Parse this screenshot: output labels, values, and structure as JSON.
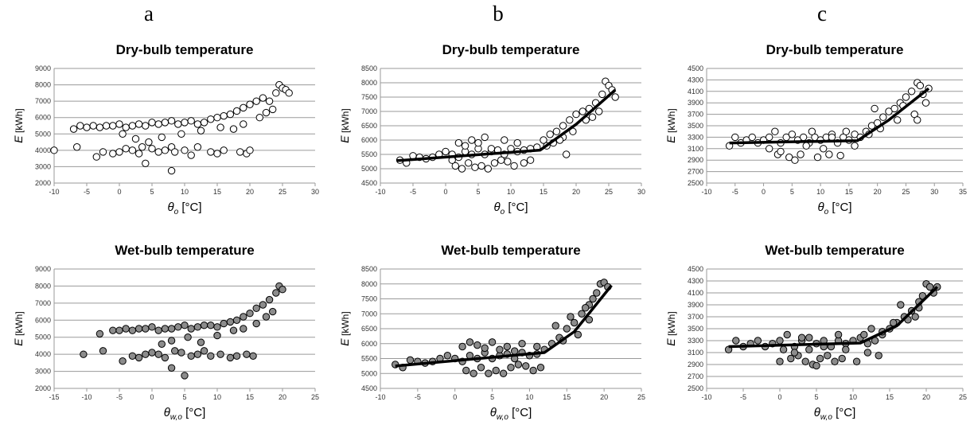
{
  "columns": [
    "a",
    "b",
    "c"
  ],
  "chart_data": [
    {
      "id": "a-dry",
      "type": "scatter",
      "title": "Dry-bulb temperature",
      "xlabel_sym": "θ",
      "xlabel_sub": "o",
      "xlabel_unit": " [°C]",
      "ylabel_sym": "E",
      "ylabel_unit": " [kWh]",
      "xlim": [
        -10,
        30
      ],
      "xticks": [
        -10,
        -5,
        0,
        5,
        10,
        15,
        20,
        25,
        30
      ],
      "ylim": [
        2000,
        9000
      ],
      "yticks": [
        2000,
        3000,
        4000,
        5000,
        6000,
        7000,
        8000,
        9000
      ],
      "marker": "open",
      "fit": false,
      "series": [
        {
          "x": [
            -10,
            -7,
            -6.5,
            -6,
            -5,
            -4,
            -3,
            -2,
            -1,
            0,
            1,
            2,
            3,
            4,
            5,
            6,
            7,
            8,
            9,
            10,
            11,
            12,
            13,
            14,
            15,
            16,
            17,
            18,
            19,
            20,
            21,
            22,
            23,
            24,
            24.5,
            25,
            25.5,
            26,
            -3.5,
            -2.5,
            -1,
            0,
            1,
            2,
            3,
            3.5,
            5,
            6,
            7,
            8,
            8.5,
            10,
            11,
            12,
            14,
            15,
            16,
            18.5,
            19.5,
            20,
            0.5,
            2.5,
            4.5,
            6.5,
            9.5,
            12.5,
            15.5,
            17.5,
            19,
            21.5,
            22.5,
            23.5,
            4,
            8
          ],
          "y": [
            4000,
            5300,
            4200,
            5500,
            5400,
            5500,
            5400,
            5500,
            5500,
            5600,
            5400,
            5500,
            5600,
            5500,
            5700,
            5600,
            5700,
            5800,
            5600,
            5700,
            5800,
            5600,
            5700,
            5900,
            6000,
            6100,
            6200,
            6400,
            6600,
            6800,
            7000,
            7200,
            7000,
            7500,
            8000,
            7800,
            7700,
            7500,
            3600,
            3900,
            3800,
            3900,
            4100,
            4000,
            3800,
            4200,
            4100,
            3900,
            4000,
            4200,
            3900,
            4000,
            3700,
            4200,
            3900,
            3800,
            4000,
            3900,
            3800,
            4000,
            5000,
            4700,
            4500,
            4800,
            5000,
            5200,
            5400,
            5300,
            5600,
            6000,
            6300,
            6500,
            3200,
            2750
          ]
        }
      ]
    },
    {
      "id": "b-dry",
      "type": "scatter",
      "title": "Dry-bulb temperature",
      "xlabel_sym": "θ",
      "xlabel_sub": "o",
      "xlabel_unit": " [°C]",
      "ylabel_sym": "E",
      "ylabel_unit": " [kWh]",
      "xlim": [
        -10,
        30
      ],
      "xticks": [
        -10,
        -5,
        0,
        5,
        10,
        15,
        20,
        25,
        30
      ],
      "ylim": [
        4500,
        8500
      ],
      "yticks": [
        4500,
        5000,
        5500,
        6000,
        6500,
        7000,
        7500,
        8000,
        8500
      ],
      "marker": "open",
      "fit": true,
      "fit_line": {
        "x": [
          -7.5,
          14.5,
          20,
          26
        ],
        "y": [
          5280,
          5650,
          6550,
          7750
        ]
      },
      "series": [
        {
          "x": [
            -7,
            -6,
            -5,
            -4,
            -3,
            -2,
            -1,
            0,
            1,
            2,
            3,
            4,
            5,
            6,
            7,
            8,
            9,
            10,
            11,
            12,
            13,
            14,
            15,
            16,
            17,
            18,
            19,
            20,
            21,
            22,
            23,
            24,
            24.5,
            25,
            25.5,
            26,
            1.5,
            2.5,
            3.5,
            4.5,
            5.5,
            6.5,
            7.5,
            8.5,
            9.5,
            10.5,
            12,
            13,
            16.5,
            18,
            19.5,
            21.5,
            23.5,
            2,
            4,
            6,
            9,
            11,
            1,
            3,
            5,
            7,
            15.5,
            17.5,
            18.5,
            22.5
          ],
          "y": [
            5300,
            5200,
            5450,
            5400,
            5350,
            5400,
            5500,
            5600,
            5500,
            5400,
            5600,
            5500,
            5700,
            5500,
            5600,
            5650,
            5500,
            5700,
            5600,
            5650,
            5700,
            5750,
            6000,
            6200,
            6300,
            6500,
            6700,
            6900,
            7000,
            7100,
            7300,
            7600,
            8050,
            7900,
            7750,
            7500,
            5100,
            5000,
            5200,
            5050,
            5100,
            5000,
            5200,
            5300,
            5250,
            5100,
            5200,
            5300,
            5900,
            6100,
            6300,
            6700,
            7000,
            5900,
            6000,
            6100,
            6000,
            5900,
            5300,
            5800,
            5900,
            5700,
            5800,
            6000,
            5500,
            6800
          ]
        }
      ]
    },
    {
      "id": "c-dry",
      "type": "scatter",
      "title": "Dry-bulb temperature",
      "xlabel_sym": "θ",
      "xlabel_sub": "o",
      "xlabel_unit": " [°C]",
      "ylabel_sym": "E",
      "ylabel_unit": " [kWh]",
      "xlim": [
        -10,
        35
      ],
      "xticks": [
        -10,
        -5,
        0,
        5,
        10,
        15,
        20,
        25,
        30,
        35
      ],
      "ylim": [
        2500,
        4500
      ],
      "yticks": [
        2500,
        2700,
        2900,
        3100,
        3300,
        3500,
        3700,
        3900,
        4100,
        4300,
        4500
      ],
      "marker": "open",
      "fit": true,
      "fit_line": {
        "x": [
          -6,
          16.5,
          22,
          29
        ],
        "y": [
          3200,
          3240,
          3600,
          4150
        ]
      },
      "series": [
        {
          "x": [
            -6,
            -5,
            -4,
            -3,
            -2,
            -1,
            0,
            1,
            2,
            3,
            4,
            5,
            6,
            7,
            8,
            9,
            10,
            11,
            12,
            13,
            14,
            15,
            16,
            17,
            18,
            19,
            20,
            21,
            22,
            23,
            24,
            25,
            26,
            27,
            27.5,
            28,
            28.5,
            29,
            2.5,
            4.5,
            5.5,
            6.5,
            9.5,
            11.5,
            13.5,
            1,
            3,
            7.5,
            10.5,
            14.5,
            18.5,
            20.5,
            23.5,
            26.5,
            27,
            8.5,
            12,
            16,
            19.5,
            24.5
          ],
          "y": [
            3150,
            3300,
            3200,
            3250,
            3300,
            3200,
            3250,
            3300,
            3400,
            3200,
            3300,
            3350,
            3250,
            3300,
            3200,
            3300,
            3250,
            3300,
            3350,
            3200,
            3300,
            3250,
            3350,
            3300,
            3400,
            3500,
            3550,
            3650,
            3750,
            3800,
            3900,
            4000,
            4100,
            4250,
            4200,
            4050,
            3900,
            4150,
            3000,
            2950,
            2900,
            3000,
            2950,
            3000,
            2980,
            3100,
            3050,
            3150,
            3100,
            3400,
            3350,
            3450,
            3600,
            3700,
            3600,
            3400,
            3300,
            3150,
            3800,
            3850
          ]
        }
      ]
    },
    {
      "id": "a-wet",
      "type": "scatter",
      "title": "Wet-bulb temperature",
      "xlabel_sym": "θ",
      "xlabel_sub": "w,o",
      "xlabel_unit": " [°C]",
      "ylabel_sym": "E",
      "ylabel_unit": " [kWh]",
      "xlim": [
        -15,
        25
      ],
      "xticks": [
        -15,
        -10,
        -5,
        0,
        5,
        10,
        15,
        20,
        25
      ],
      "ylim": [
        2000,
        9000
      ],
      "yticks": [
        2000,
        3000,
        4000,
        5000,
        6000,
        7000,
        8000,
        9000
      ],
      "marker": "filled",
      "fit": false,
      "series": [
        {
          "x": [
            -10.5,
            -8,
            -7.5,
            -6,
            -5,
            -4,
            -3,
            -2,
            -1,
            0,
            1,
            2,
            3,
            4,
            5,
            6,
            7,
            8,
            9,
            10,
            11,
            12,
            13,
            14,
            15,
            16,
            17,
            18,
            19,
            19.5,
            20,
            -4.5,
            -3,
            -2,
            -1,
            0,
            1,
            2,
            3.5,
            4.5,
            6,
            7,
            8,
            9,
            10.5,
            12,
            13,
            14.5,
            15.5,
            1.5,
            3,
            5.5,
            7.5,
            10,
            12.5,
            14,
            16,
            17.5,
            18.5,
            3,
            5
          ],
          "y": [
            4000,
            5200,
            4200,
            5400,
            5400,
            5500,
            5400,
            5500,
            5500,
            5600,
            5400,
            5500,
            5500,
            5600,
            5700,
            5500,
            5600,
            5700,
            5700,
            5600,
            5800,
            5900,
            6000,
            6200,
            6400,
            6700,
            6900,
            7200,
            7600,
            8000,
            7800,
            3600,
            3900,
            3800,
            4000,
            4100,
            4000,
            3800,
            4200,
            4100,
            3900,
            4000,
            4200,
            3900,
            4000,
            3800,
            3900,
            4000,
            3900,
            4600,
            4800,
            5000,
            4700,
            5100,
            5400,
            5500,
            5800,
            6200,
            6500,
            3200,
            2750
          ]
        }
      ]
    },
    {
      "id": "b-wet",
      "type": "scatter",
      "title": "Wet-bulb temperature",
      "xlabel_sym": "θ",
      "xlabel_sub": "w,o",
      "xlabel_unit": " [°C]",
      "ylabel_sym": "E",
      "ylabel_unit": " [kWh]",
      "xlim": [
        -10,
        25
      ],
      "xticks": [
        -10,
        -5,
        0,
        5,
        10,
        15,
        20,
        25
      ],
      "ylim": [
        4500,
        8500
      ],
      "yticks": [
        4500,
        5000,
        5500,
        6000,
        6500,
        7000,
        7500,
        8000,
        8500
      ],
      "marker": "filled",
      "fit": true,
      "fit_line": {
        "x": [
          -8,
          12,
          16,
          21
        ],
        "y": [
          5250,
          5700,
          6400,
          7950
        ]
      },
      "series": [
        {
          "x": [
            -8,
            -7,
            -6,
            -5,
            -4,
            -3,
            -2,
            -1,
            0,
            1,
            2,
            3,
            4,
            5,
            6,
            7,
            8,
            9,
            10,
            11,
            12,
            13,
            14,
            15,
            16,
            17,
            18,
            18.5,
            19,
            19.5,
            20,
            20.5,
            1.5,
            2.5,
            3.5,
            4.5,
            5.5,
            6.5,
            7.5,
            8.5,
            9.5,
            10.5,
            11.5,
            1,
            3,
            5,
            7,
            9,
            11,
            13.5,
            15.5,
            17.5,
            2,
            4,
            6,
            8,
            14.5,
            16.5,
            18
          ],
          "y": [
            5300,
            5200,
            5450,
            5400,
            5350,
            5400,
            5500,
            5600,
            5500,
            5400,
            5600,
            5500,
            5700,
            5500,
            5600,
            5650,
            5500,
            5700,
            5600,
            5650,
            5800,
            6000,
            6200,
            6500,
            6700,
            7000,
            7300,
            7500,
            7700,
            8000,
            8050,
            7900,
            5100,
            5000,
            5200,
            5000,
            5100,
            5000,
            5200,
            5300,
            5250,
            5100,
            5200,
            5900,
            5950,
            6050,
            5900,
            6000,
            5900,
            6600,
            6900,
            7200,
            6050,
            5850,
            5800,
            5750,
            6100,
            6300,
            6800
          ]
        }
      ]
    },
    {
      "id": "c-wet",
      "type": "scatter",
      "title": "Wet-bulb temperature",
      "xlabel_sym": "θ",
      "xlabel_sub": "w,o",
      "xlabel_unit": " [°C]",
      "ylabel_sym": "E",
      "ylabel_unit": " [kWh]",
      "xlim": [
        -10,
        25
      ],
      "xticks": [
        -10,
        -5,
        0,
        5,
        10,
        15,
        20,
        25
      ],
      "ylim": [
        2500,
        4500
      ],
      "yticks": [
        2500,
        2700,
        2900,
        3100,
        3300,
        3500,
        3700,
        3900,
        4100,
        4300,
        4500
      ],
      "marker": "filled",
      "fit": true,
      "fit_line": {
        "x": [
          -7,
          11,
          16,
          21.5
        ],
        "y": [
          3200,
          3260,
          3550,
          4200
        ]
      },
      "series": [
        {
          "x": [
            -7,
            -6,
            -5,
            -4,
            -3,
            -2,
            -1,
            0,
            1,
            2,
            3,
            4,
            5,
            6,
            7,
            8,
            9,
            10,
            11,
            12,
            13,
            14,
            15,
            16,
            17,
            18,
            19,
            19.5,
            20,
            20.5,
            21,
            21.5,
            0,
            1.5,
            2.5,
            3.5,
            4.5,
            5.5,
            6.5,
            7.5,
            8.5,
            10.5,
            12,
            13.5,
            0.5,
            2,
            4,
            6,
            9,
            11.5,
            14,
            15.5,
            17.5,
            18.5,
            5,
            8,
            3,
            12.5,
            16.5,
            19
          ],
          "y": [
            3150,
            3300,
            3200,
            3250,
            3300,
            3200,
            3250,
            3300,
            3400,
            3200,
            3300,
            3350,
            3250,
            3300,
            3200,
            3300,
            3250,
            3300,
            3350,
            3250,
            3300,
            3400,
            3500,
            3600,
            3700,
            3800,
            3950,
            4050,
            4250,
            4200,
            4100,
            4200,
            2950,
            3000,
            3050,
            2950,
            2900,
            3000,
            3050,
            2950,
            3000,
            2950,
            3100,
            3050,
            3150,
            3100,
            3150,
            3200,
            3150,
            3400,
            3450,
            3600,
            3650,
            3700,
            2880,
            3400,
            3350,
            3500,
            3900,
            3850
          ]
        }
      ]
    }
  ]
}
